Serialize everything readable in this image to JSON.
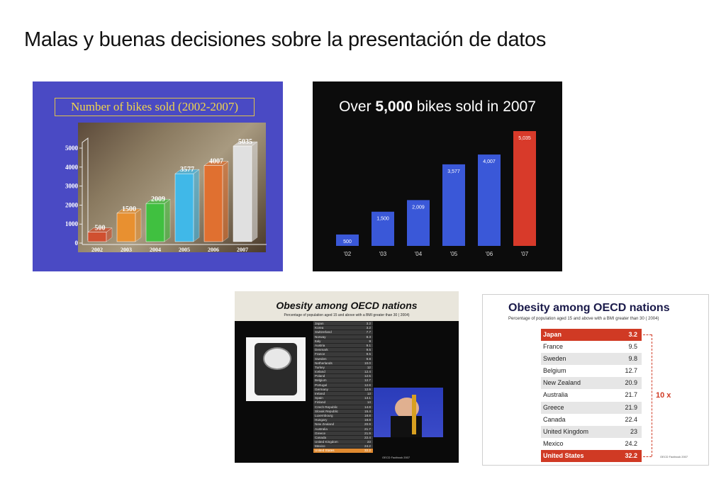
{
  "page": {
    "title": "Malas y buenas decisiones sobre la presentación de datos"
  },
  "panel1": {
    "title": "Number of bikes sold (2002-2007)",
    "chart_data": {
      "type": "bar",
      "categories": [
        "2002",
        "2003",
        "2004",
        "2005",
        "2006",
        "2007"
      ],
      "values": [
        500,
        1500,
        2009,
        3577,
        4007,
        5035
      ],
      "labels": [
        "500",
        "1500",
        "2009",
        "3577",
        "4007",
        "5035"
      ],
      "yticks": [
        "5000",
        "4000",
        "3000",
        "2000",
        "1000",
        "0"
      ],
      "ylim": [
        0,
        5000
      ],
      "colors": [
        "#d05030",
        "#e89030",
        "#40c040",
        "#40b8e8",
        "#e07030",
        "#e0e0e0"
      ]
    }
  },
  "panel2": {
    "title_pre": "Over ",
    "title_bold": "5,000",
    "title_post": " bikes sold in 2007",
    "chart_data": {
      "type": "bar",
      "categories": [
        "'02",
        "'03",
        "'04",
        "'05",
        "'06",
        "'07"
      ],
      "values": [
        500,
        1500,
        2009,
        3577,
        4007,
        5035
      ],
      "labels": [
        "500",
        "1,500",
        "2,009",
        "3,577",
        "4,007",
        "5,035"
      ],
      "colors": [
        "#3a58d8",
        "#3a58d8",
        "#3a58d8",
        "#3a58d8",
        "#3a58d8",
        "#d83a2a"
      ]
    }
  },
  "panel3": {
    "title": "Obesity among OECD nations",
    "subtitle": "Percentage of population aged 15 and above with a BMI greater than 30 ( 2004)",
    "rows": [
      {
        "country": "Japan",
        "value": "3.2"
      },
      {
        "country": "Korea",
        "value": "3.2"
      },
      {
        "country": "Switzerland",
        "value": "7.7"
      },
      {
        "country": "Norway",
        "value": "8.3"
      },
      {
        "country": "Italy",
        "value": "9"
      },
      {
        "country": "Austria",
        "value": "9.1"
      },
      {
        "country": "Denmark",
        "value": "9.5"
      },
      {
        "country": "France",
        "value": "9.5"
      },
      {
        "country": "Sweden",
        "value": "9.8"
      },
      {
        "country": "Netherlands",
        "value": "10.0"
      },
      {
        "country": "Turkey",
        "value": "12"
      },
      {
        "country": "Iceland",
        "value": "12.4"
      },
      {
        "country": "Poland",
        "value": "12.5"
      },
      {
        "country": "Belgium",
        "value": "12.7"
      },
      {
        "country": "Portugal",
        "value": "12.8"
      },
      {
        "country": "Germany",
        "value": "12.9"
      },
      {
        "country": "Ireland",
        "value": "13"
      },
      {
        "country": "Spain",
        "value": "13.1"
      },
      {
        "country": "Finland",
        "value": "14"
      },
      {
        "country": "Czech Republic",
        "value": "14.8"
      },
      {
        "country": "Slovak Republic",
        "value": "15.4"
      },
      {
        "country": "Luxembourg",
        "value": "18.8"
      },
      {
        "country": "Hungary",
        "value": "18.8"
      },
      {
        "country": "New Zealand",
        "value": "20.9"
      },
      {
        "country": "Australia",
        "value": "21.7"
      },
      {
        "country": "Greece",
        "value": "21.9"
      },
      {
        "country": "Canada",
        "value": "22.4"
      },
      {
        "country": "United Kingdom",
        "value": "23"
      },
      {
        "country": "Mexico",
        "value": "24.2"
      },
      {
        "country": "United States",
        "value": "32.2"
      }
    ],
    "source": "OECD Factbook 2007"
  },
  "panel4": {
    "title": "Obesity among OECD nations",
    "subtitle": "Percentage of population aged 15 and above with a BMI greater than 30 ( 2004)",
    "rows": [
      {
        "country": "Japan",
        "value": "3.2"
      },
      {
        "country": "France",
        "value": "9.5"
      },
      {
        "country": "Sweden",
        "value": "9.8"
      },
      {
        "country": "Belgium",
        "value": "12.7"
      },
      {
        "country": "New Zealand",
        "value": "20.9"
      },
      {
        "country": "Australia",
        "value": "21.7"
      },
      {
        "country": "Greece",
        "value": "21.9"
      },
      {
        "country": "Canada",
        "value": "22.4"
      },
      {
        "country": "United Kingdom",
        "value": "23"
      },
      {
        "country": "Mexico",
        "value": "24.2"
      },
      {
        "country": "United States",
        "value": "32.2"
      }
    ],
    "annotation": "10 x",
    "source": "OECD Factbook 2007",
    "highlight_color": "#d03a24"
  }
}
